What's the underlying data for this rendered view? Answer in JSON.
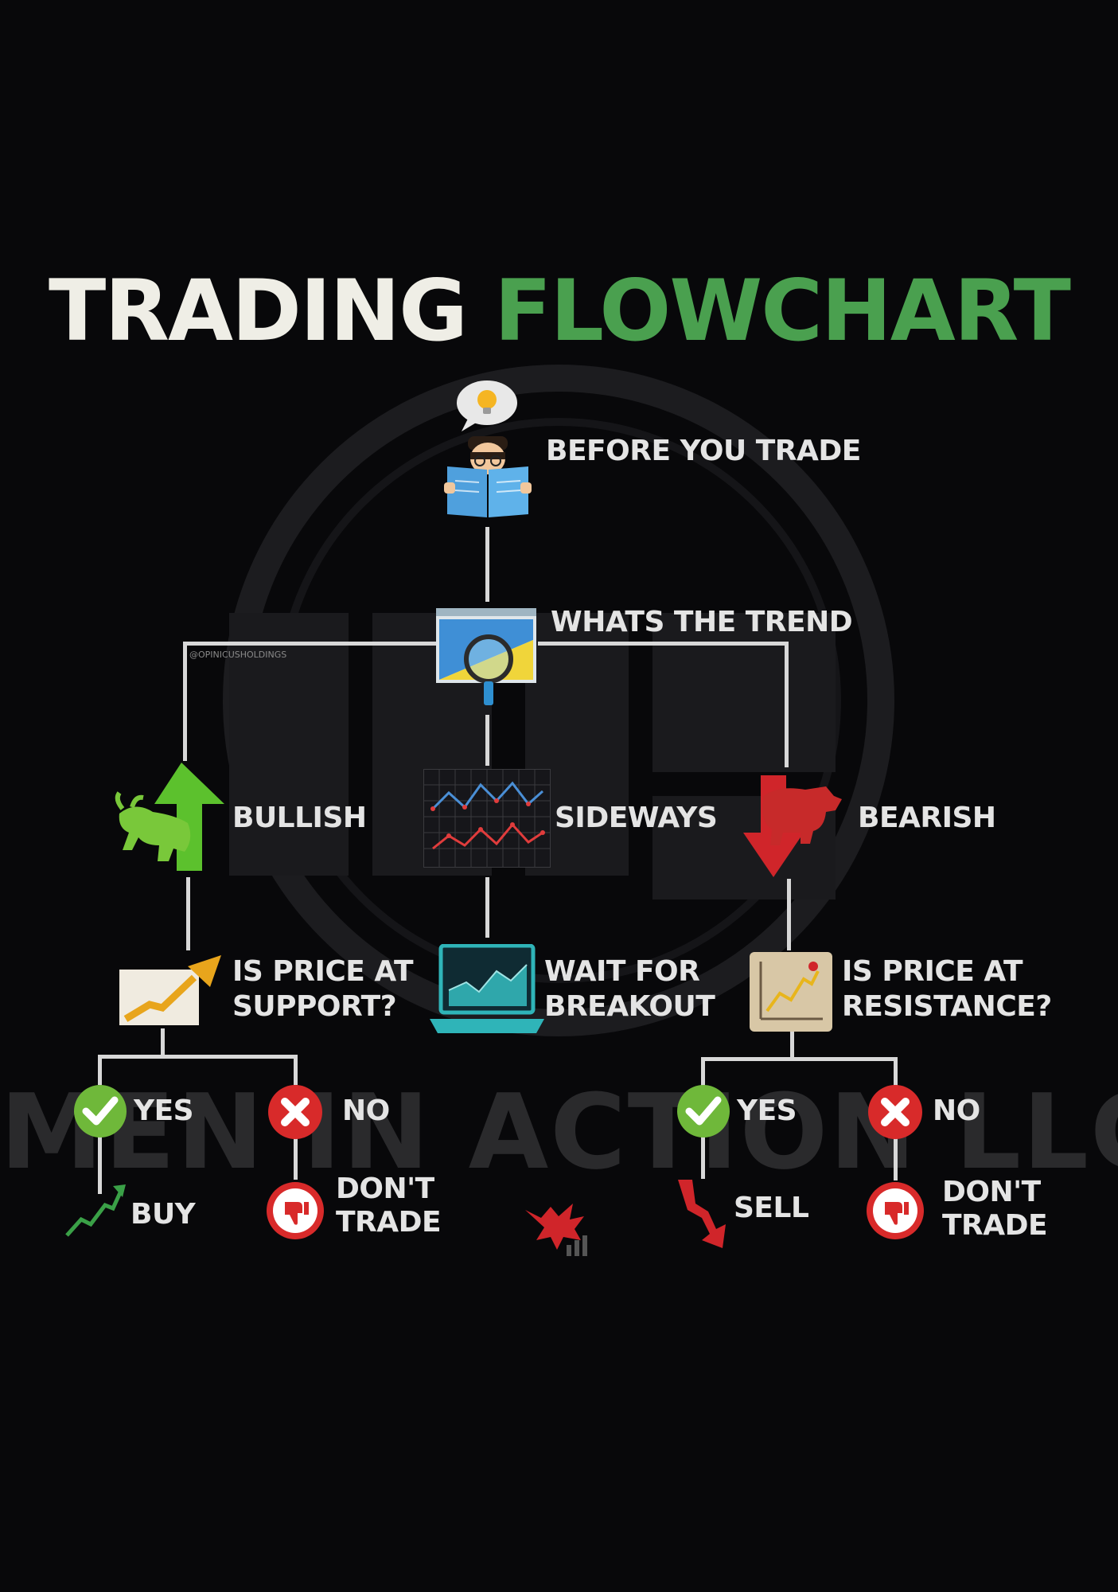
{
  "title": {
    "part1": "TRADING",
    "part2": "FLOWCHART"
  },
  "handle": "@OPINICUSHOLDINGS",
  "watermark_text": "MEN IN ACTION LLC",
  "nodes": {
    "start": "BEFORE YOU TRADE",
    "trend": "WHATS THE TREND",
    "bullish": "BULLISH",
    "sideways": "SIDEWAYS",
    "bearish": "BEARISH",
    "support_line1": "IS PRICE AT",
    "support_line2": "SUPPORT?",
    "breakout_line1": "WAIT FOR",
    "breakout_line2": "BREAKOUT",
    "resistance_line1": "IS PRICE AT",
    "resistance_line2": "RESISTANCE?",
    "yes_left": "YES",
    "no_left": "NO",
    "yes_right": "YES",
    "no_right": "NO",
    "buy": "BUY",
    "dont_trade_left_1": "DON'T",
    "dont_trade_left_2": "TRADE",
    "sell": "SELL",
    "dont_trade_right_1": "DON'T",
    "dont_trade_right_2": "TRADE"
  },
  "colors": {
    "background": "#08080a",
    "title_white": "#efeee6",
    "title_green": "#4aa04f",
    "bull_green": "#6fc32e",
    "bear_red": "#d0252a",
    "check_green": "#6fb83a",
    "cross_red": "#d82a2a"
  },
  "icons": [
    "lightbulb-icon",
    "reader-icon",
    "trend-chart-icon",
    "magnifier-icon",
    "bull-icon",
    "sideways-chart-icon",
    "bear-icon",
    "support-chart-icon",
    "laptop-chart-icon",
    "resistance-chart-icon",
    "check-icon",
    "cross-icon",
    "uptrend-arrow-icon",
    "thumbs-down-icon",
    "downtrend-arrow-icon",
    "dragon-logo-icon"
  ]
}
